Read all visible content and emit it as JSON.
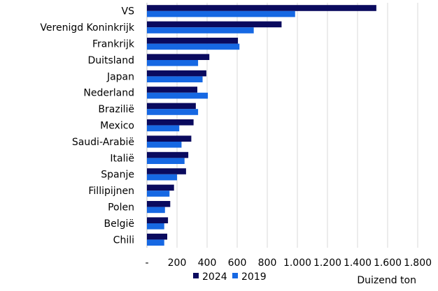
{
  "chart_data": {
    "type": "bar",
    "orientation": "horizontal",
    "categories": [
      "VS",
      "Verenigd Koninkrijk",
      "Frankrijk",
      "Duitsland",
      "Japan",
      "Nederland",
      "Brazilië",
      "Mexico",
      "Saudi-Arabië",
      "Italië",
      "Spanje",
      "Fillipijnen",
      "Polen",
      "België",
      "Chili"
    ],
    "series": [
      {
        "name": "2024",
        "color": "#0a0a5e",
        "values": [
          1525,
          895,
          605,
          415,
          395,
          335,
          325,
          310,
          295,
          275,
          260,
          180,
          155,
          140,
          135
        ]
      },
      {
        "name": "2019",
        "color": "#1668e3",
        "values": [
          985,
          710,
          615,
          340,
          370,
          405,
          340,
          215,
          230,
          250,
          200,
          150,
          120,
          115,
          115
        ]
      }
    ],
    "xlim": [
      0,
      1800
    ],
    "xticks": [
      0,
      200,
      400,
      600,
      800,
      1000,
      1200,
      1400,
      1600,
      1800
    ],
    "xtick_labels": [
      "-",
      "200",
      "400",
      "600",
      "800",
      "1.000",
      "1.200",
      "1.400",
      "1.600",
      "1.800"
    ],
    "xlabel": "Duizend ton",
    "legend": "bottom",
    "grid": "vertical"
  }
}
